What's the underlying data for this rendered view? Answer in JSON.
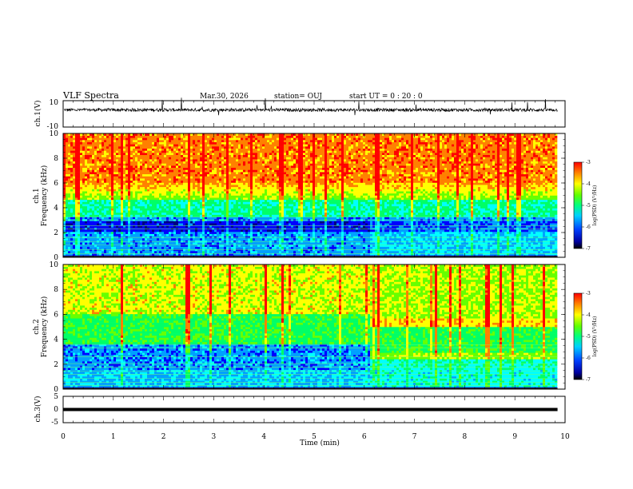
{
  "header": {
    "title": "VLF Spectra",
    "date": "Mar.30, 2026",
    "station": "station= OUJ",
    "start": "start  UT =   0  : 20 : 0"
  },
  "colors": {
    "colormap": [
      "#000080",
      "#0000ff",
      "#00a0ff",
      "#00ffff",
      "#00ff66",
      "#66ff00",
      "#ffff00",
      "#ff8000",
      "#ff0000"
    ]
  },
  "chart_data": [
    {
      "type": "line",
      "name": "ch1-waveform",
      "ylabel": "ch.1(V)",
      "ylim": [
        -10,
        10
      ],
      "ytick_labels": [
        "10",
        "-10"
      ],
      "x_range_min": [
        0,
        9.85
      ],
      "baseline": 3,
      "noise_amplitude": 1.2
    },
    {
      "type": "heatmap",
      "name": "ch1-spectrogram",
      "ylabel": "ch.1\nFrequency  (kHz)",
      "ylim_khz": [
        0,
        10
      ],
      "ytick_labels": [
        "0",
        "2",
        "4",
        "6",
        "8",
        "10"
      ],
      "x_range_min": [
        0,
        9.85
      ],
      "colorbar": {
        "label": "log(PSD) (V²/Hz)",
        "range": [
          -7,
          -3
        ],
        "tick_labels": [
          "-3",
          "-4",
          "-5",
          "-6",
          "-7"
        ]
      }
    },
    {
      "type": "heatmap",
      "name": "ch2-spectrogram",
      "ylabel": "ch.2\nFrequency  (kHz)",
      "ylim_khz": [
        0,
        10
      ],
      "ytick_labels": [
        "0",
        "2",
        "4",
        "6",
        "8",
        "10"
      ],
      "x_range_min": [
        0,
        9.85
      ],
      "colorbar": {
        "label": "log(PSD) (V²/Hz)",
        "range": [
          -7,
          -3
        ],
        "tick_labels": [
          "-3",
          "-4",
          "-5",
          "-6",
          "-7"
        ]
      }
    },
    {
      "type": "line",
      "name": "ch3-waveform",
      "ylabel": "ch.3(V)",
      "ylim": [
        -5,
        5
      ],
      "ytick_labels": [
        "5",
        "0",
        "-5"
      ],
      "x_range_min": [
        0,
        9.85
      ],
      "constant_value": 0
    }
  ],
  "xaxis": {
    "label": "Time  (min)",
    "range": [
      0,
      10
    ],
    "tick_labels": [
      "0",
      "1",
      "2",
      "3",
      "4",
      "5",
      "6",
      "7",
      "8",
      "9",
      "10"
    ]
  }
}
